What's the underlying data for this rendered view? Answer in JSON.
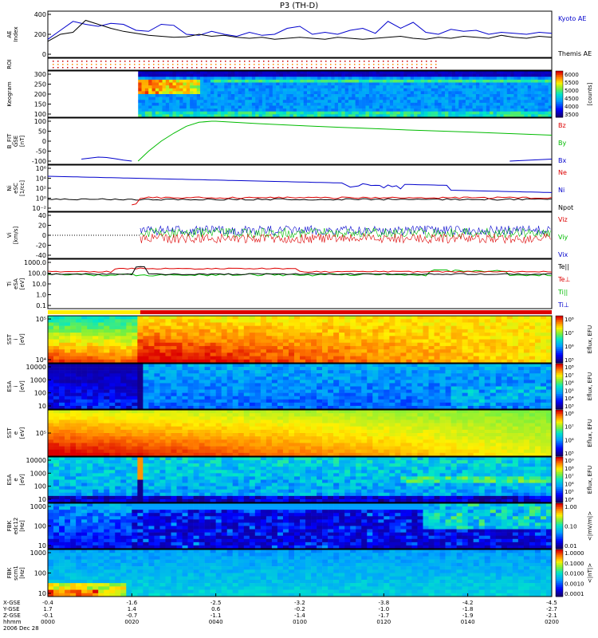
{
  "title": "P3 (TH-D)",
  "colors": {
    "blue": "#0000cc",
    "red": "#dd0000",
    "green": "#00bb00",
    "black": "#000000"
  },
  "chart_data": [
    {
      "type": "line",
      "ylabel": "AE Index",
      "yticks": [
        "400",
        "200",
        "0"
      ],
      "ylim": [
        0,
        400
      ],
      "series": [
        {
          "name": "Kyoto AE",
          "color": "#0000cc",
          "x": [
            0,
            3,
            6,
            9,
            12,
            15,
            18,
            21,
            24,
            27,
            30,
            33,
            36,
            39,
            42,
            45,
            48,
            51,
            54,
            57,
            60,
            63,
            66,
            69,
            72,
            75,
            78,
            81,
            84,
            87,
            90,
            93,
            96,
            99,
            102,
            105,
            108,
            111,
            114,
            117,
            120
          ],
          "values": [
            150,
            240,
            330,
            300,
            280,
            310,
            300,
            240,
            230,
            300,
            290,
            200,
            190,
            230,
            200,
            180,
            220,
            190,
            200,
            260,
            280,
            200,
            220,
            200,
            240,
            260,
            210,
            330,
            260,
            320,
            220,
            200,
            250,
            230,
            240,
            200,
            220,
            210,
            200,
            220,
            210
          ]
        },
        {
          "name": "Themis AE",
          "color": "#000000",
          "x": [
            0,
            3,
            6,
            9,
            12,
            15,
            18,
            21,
            24,
            27,
            30,
            33,
            36,
            39,
            42,
            45,
            48,
            51,
            54,
            57,
            60,
            63,
            66,
            69,
            72,
            75,
            78,
            81,
            84,
            87,
            90,
            93,
            96,
            99,
            102,
            105,
            108,
            111,
            114,
            117,
            120
          ],
          "values": [
            130,
            200,
            220,
            340,
            300,
            260,
            230,
            210,
            190,
            180,
            170,
            175,
            200,
            180,
            190,
            170,
            160,
            170,
            150,
            160,
            170,
            160,
            150,
            170,
            160,
            150,
            160,
            170,
            180,
            160,
            150,
            170,
            160,
            180,
            170,
            160,
            190,
            170,
            160,
            180,
            170
          ]
        }
      ]
    },
    {
      "type": "line",
      "ylabel": "ROI",
      "yticks": []
    },
    {
      "type": "heatmap",
      "ylabel": "Keogram",
      "yticks": [
        "300",
        "250",
        "200",
        "150",
        "100"
      ],
      "ylim": [
        100,
        300
      ],
      "colorbar": {
        "ticks": [
          "6000",
          "5500",
          "5000",
          "4500",
          "4000",
          "3500"
        ],
        "label": "[counts]"
      }
    },
    {
      "type": "line",
      "ylabel": "B_FIT GSE [nT]",
      "yticks": [
        "100",
        "50",
        "0",
        "-50",
        "-100"
      ],
      "ylim": [
        -100,
        100
      ],
      "series": [
        {
          "name": "Bz",
          "color": "#dd0000",
          "x": [],
          "values": []
        },
        {
          "name": "By",
          "color": "#00bb00",
          "x": [
            21.5,
            24,
            27,
            30,
            33,
            36,
            39,
            40,
            50,
            60,
            70,
            80,
            90,
            100,
            110,
            120
          ],
          "values": [
            -100,
            -50,
            0,
            40,
            75,
            95,
            100,
            100,
            88,
            78,
            69,
            61,
            53,
            46,
            38,
            30
          ]
        },
        {
          "name": "Bx",
          "color": "#0000cc",
          "x": [
            8,
            10,
            12,
            14,
            16,
            18,
            20,
            110,
            115,
            120
          ],
          "values": [
            -90,
            -85,
            -80,
            -82,
            -88,
            -95,
            -100,
            -100,
            -95,
            -90
          ]
        }
      ]
    },
    {
      "type": "line",
      "ylabel": "Ni eSC [1/cc]",
      "yticks": [
        "10⁶",
        "10⁴",
        "10²",
        "10⁰",
        "10⁻²"
      ],
      "series": [
        {
          "name": "Ne",
          "color": "#dd0000",
          "x": [],
          "values": []
        },
        {
          "name": "Ni",
          "color": "#0000cc",
          "x": [],
          "values": []
        },
        {
          "name": "Npot",
          "color": "#000000",
          "x": [],
          "values": []
        }
      ]
    },
    {
      "type": "line",
      "ylabel": "Vi [km/s]",
      "yticks": [
        "40",
        "20",
        "0",
        "-20",
        "-40"
      ],
      "ylim": [
        -50,
        50
      ],
      "series": [
        {
          "name": "Viz",
          "color": "#dd0000",
          "x": [],
          "values": []
        },
        {
          "name": "Viy",
          "color": "#00bb00",
          "x": [],
          "values": []
        },
        {
          "name": "Vix",
          "color": "#0000cc",
          "x": [],
          "values": []
        }
      ]
    },
    {
      "type": "line",
      "ylabel": "Ti eSA [eV]",
      "yticks": [
        "1000.0",
        "100.0",
        "10.0",
        "1.0",
        "0.1"
      ],
      "series": [
        {
          "name": "Te||",
          "color": "#000000",
          "x": [],
          "values": []
        },
        {
          "name": "Te⊥",
          "color": "#dd0000",
          "x": [],
          "values": []
        },
        {
          "name": "Ti||",
          "color": "#00bb00",
          "x": [],
          "values": []
        },
        {
          "name": "Ti⊥",
          "color": "#0000cc",
          "x": [],
          "values": []
        }
      ]
    },
    {
      "type": "heatmap",
      "ylabel": "SST i [eV]",
      "yticks": [
        "10⁵",
        "10⁴"
      ],
      "colorbar": {
        "ticks": [
          "10⁸",
          "10⁷",
          "10⁶",
          "10⁵"
        ],
        "label": "Eflux, EFU"
      }
    },
    {
      "type": "heatmap",
      "ylabel": "ESA i [eV]",
      "yticks": [
        "10000",
        "1000",
        "100",
        "10"
      ],
      "colorbar": {
        "ticks": [
          "10⁸",
          "10⁷",
          "10⁶",
          "10⁵",
          "10⁴",
          "10³"
        ],
        "label": "Eflux, EFU"
      }
    },
    {
      "type": "heatmap",
      "ylabel": "SST e [eV]",
      "yticks": [
        "10⁵"
      ],
      "colorbar": {
        "ticks": [
          "10⁸",
          "10⁷",
          "10⁶",
          "10⁵"
        ],
        "label": "Eflux, EFU"
      }
    },
    {
      "type": "heatmap",
      "ylabel": "ESA e [eV]",
      "yticks": [
        "10000",
        "1000",
        "100",
        "10"
      ],
      "colorbar": {
        "ticks": [
          "10⁹",
          "10⁸",
          "10⁷",
          "10⁶",
          "10⁵",
          "10⁴"
        ],
        "label": "Eflux, EFU"
      }
    },
    {
      "type": "heatmap",
      "ylabel": "FBK edc12 [Hz]",
      "yticks": [
        "1000",
        "100",
        "10"
      ],
      "colorbar": {
        "ticks": [
          "1.00",
          "0.10",
          "0.01"
        ],
        "label": "<|mV/m|>"
      }
    },
    {
      "type": "heatmap",
      "ylabel": "FBK scm1 [Hz]",
      "yticks": [
        "1000",
        "100",
        "10"
      ],
      "colorbar": {
        "ticks": [
          "1.0000",
          "0.1000",
          "0.0100",
          "0.0010",
          "0.0001"
        ],
        "label": "<|nT|>"
      }
    }
  ],
  "xaxis": {
    "row_labels": [
      "X-GSE",
      "Y-GSE",
      "Z-GSE",
      "hhmm",
      "2006 Dec 28"
    ],
    "ticks": [
      {
        "x": 0,
        "vals": [
          "-0.4",
          "1.7",
          "-0.1",
          "0000"
        ]
      },
      {
        "x": 20,
        "vals": [
          "-1.6",
          "1.4",
          "-0.7",
          "0020"
        ]
      },
      {
        "x": 40,
        "vals": [
          "-2.5",
          "0.6",
          "-1.1",
          "0040"
        ]
      },
      {
        "x": 60,
        "vals": [
          "-3.2",
          "-0.2",
          "-1.4",
          "0100"
        ]
      },
      {
        "x": 80,
        "vals": [
          "-3.8",
          "-1.0",
          "-1.7",
          "0120"
        ]
      },
      {
        "x": 100,
        "vals": [
          "-4.2",
          "-1.8",
          "-1.9",
          "0140"
        ]
      },
      {
        "x": 120,
        "vals": [
          "-4.5",
          "-2.7",
          "-2.1",
          "0200"
        ]
      }
    ]
  }
}
